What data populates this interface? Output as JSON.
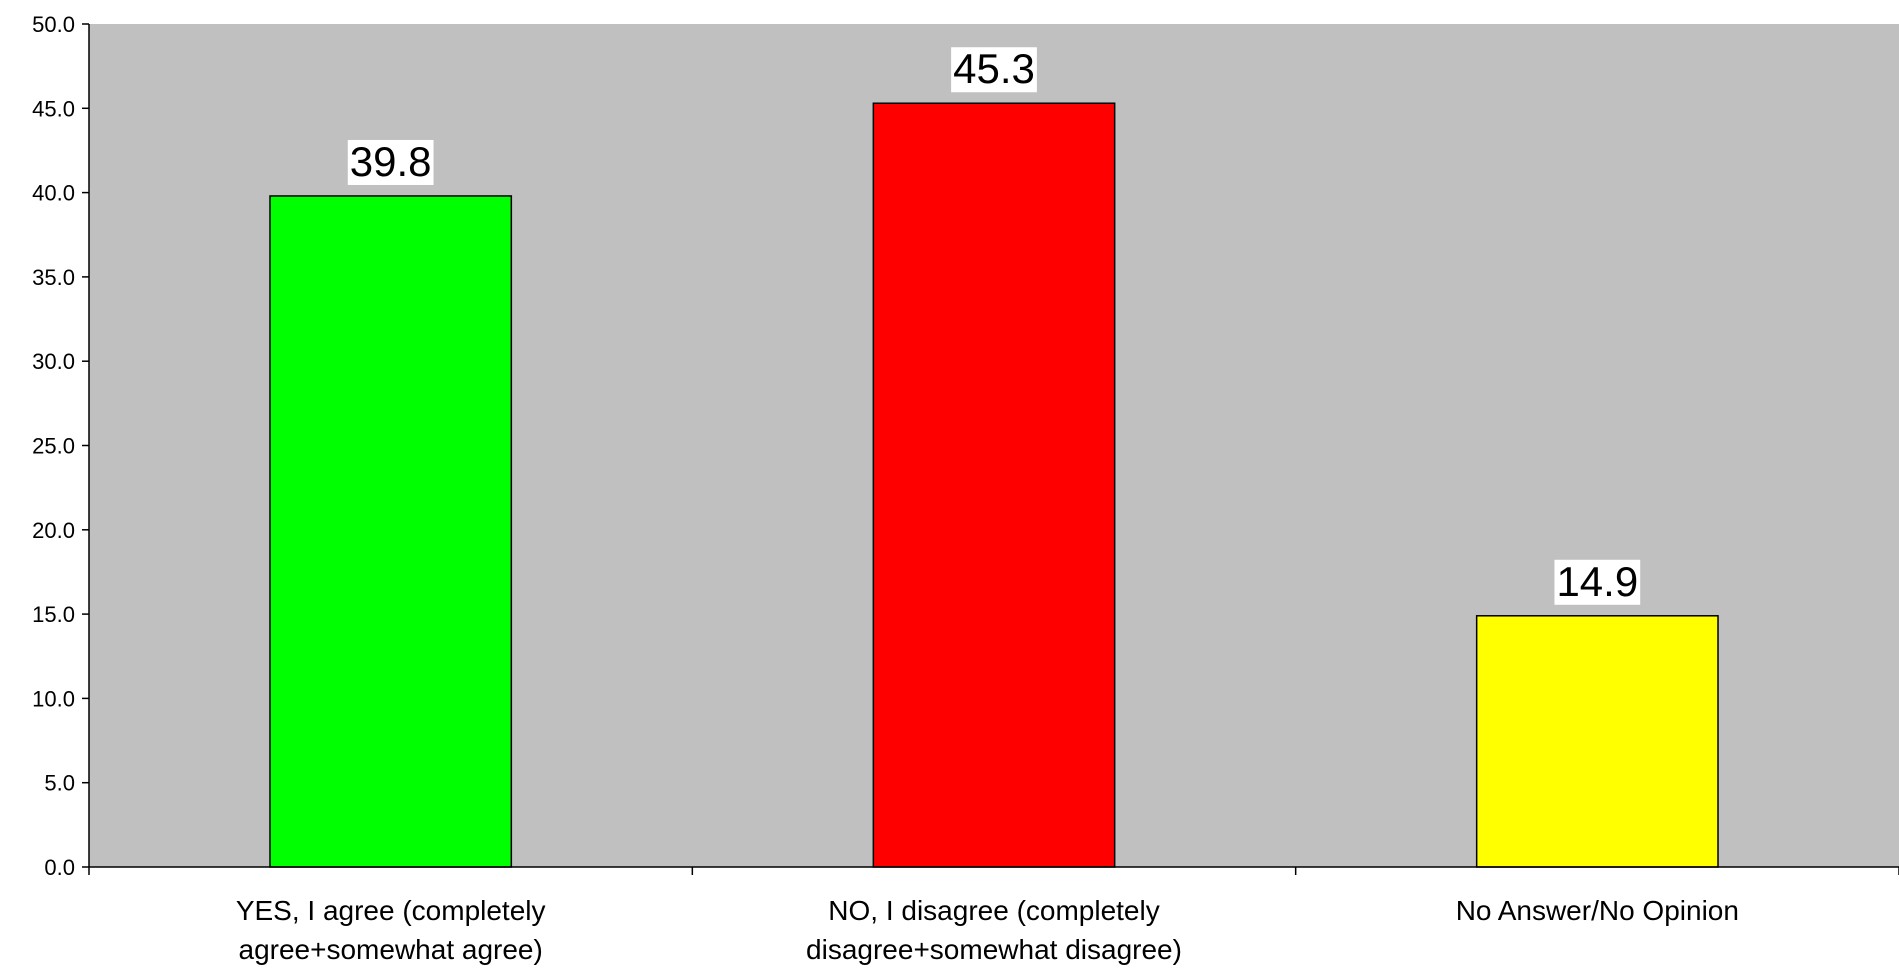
{
  "chart_data": {
    "type": "bar",
    "title": "",
    "xlabel": "",
    "ylabel": "",
    "categories": [
      [
        "YES, I agree (completely",
        "agree+somewhat agree)"
      ],
      [
        "NO, I disagree (completely",
        "disagree+somewhat disagree)"
      ],
      [
        "No Answer/No Opinion"
      ]
    ],
    "values": [
      39.8,
      45.3,
      14.9
    ],
    "value_labels": [
      "39.8",
      "45.3",
      "14.9"
    ],
    "bar_colors": [
      "#00ff00",
      "#ff0000",
      "#ffff00"
    ],
    "ylim": [
      0,
      50
    ],
    "yticks": [
      "0.0",
      "5.0",
      "10.0",
      "15.0",
      "20.0",
      "25.0",
      "30.0",
      "35.0",
      "40.0",
      "45.0",
      "50.0"
    ],
    "grid": false,
    "legend": "none",
    "plot_background": "#c0c0c0"
  }
}
